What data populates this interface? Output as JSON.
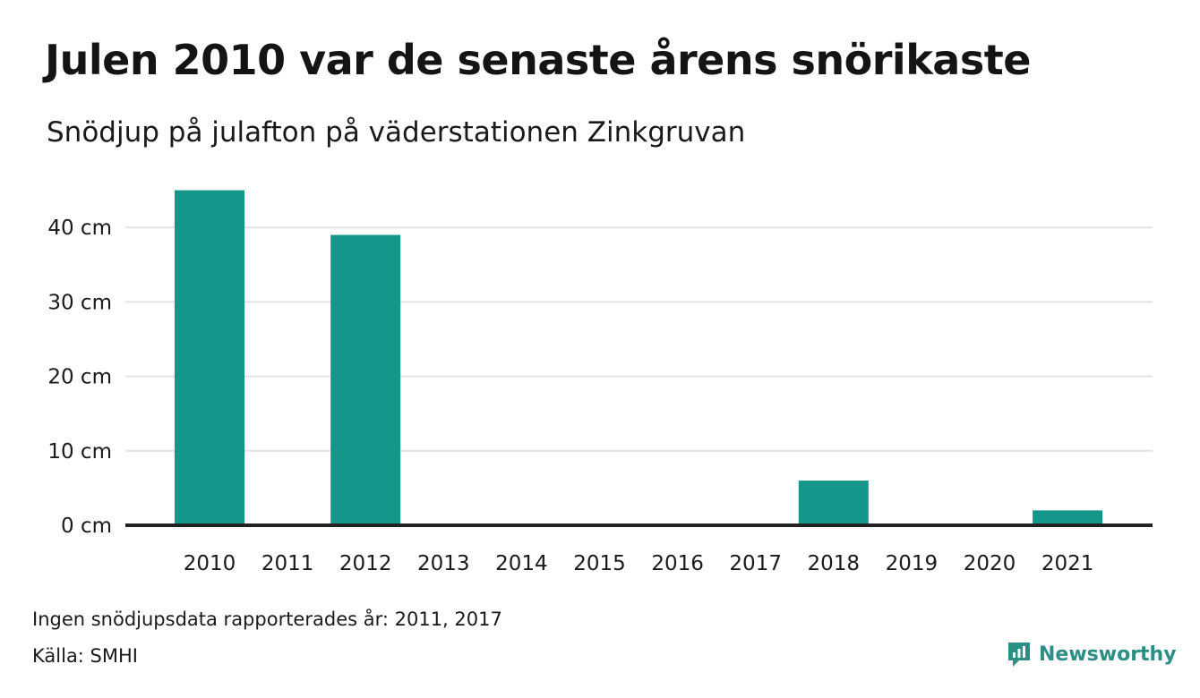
{
  "title": "Julen 2010 var de senaste årens snörikaste",
  "subtitle": "Snödjup på julafton på väderstationen Zinkgruvan",
  "footer": {
    "note": "Ingen snödjupsdata rapporterades år: 2011, 2017",
    "source": "Källa: SMHI",
    "brand": "Newsworthy",
    "brand_icon": "newsworthy-logo-icon"
  },
  "colors": {
    "bar": "#14968a",
    "grid": "#e3e3e3",
    "baseline": "#222222",
    "brand": "#2b8f86"
  },
  "chart_data": {
    "type": "bar",
    "categories": [
      "2010",
      "2011",
      "2012",
      "2013",
      "2014",
      "2015",
      "2016",
      "2017",
      "2018",
      "2019",
      "2020",
      "2021"
    ],
    "values": [
      45,
      null,
      39,
      0,
      0,
      0,
      0,
      null,
      6,
      0,
      0,
      2
    ],
    "title": "Julen 2010 var de senaste årens snörikaste",
    "subtitle": "Snödjup på julafton på väderstationen Zinkgruvan",
    "xlabel": "",
    "ylabel": "",
    "ylim": [
      0,
      45
    ],
    "yticks": [
      0,
      10,
      20,
      30,
      40
    ],
    "ytick_labels": [
      "0 cm",
      "10 cm",
      "20 cm",
      "30 cm",
      "40 cm"
    ],
    "grid": true,
    "legend": "none"
  }
}
